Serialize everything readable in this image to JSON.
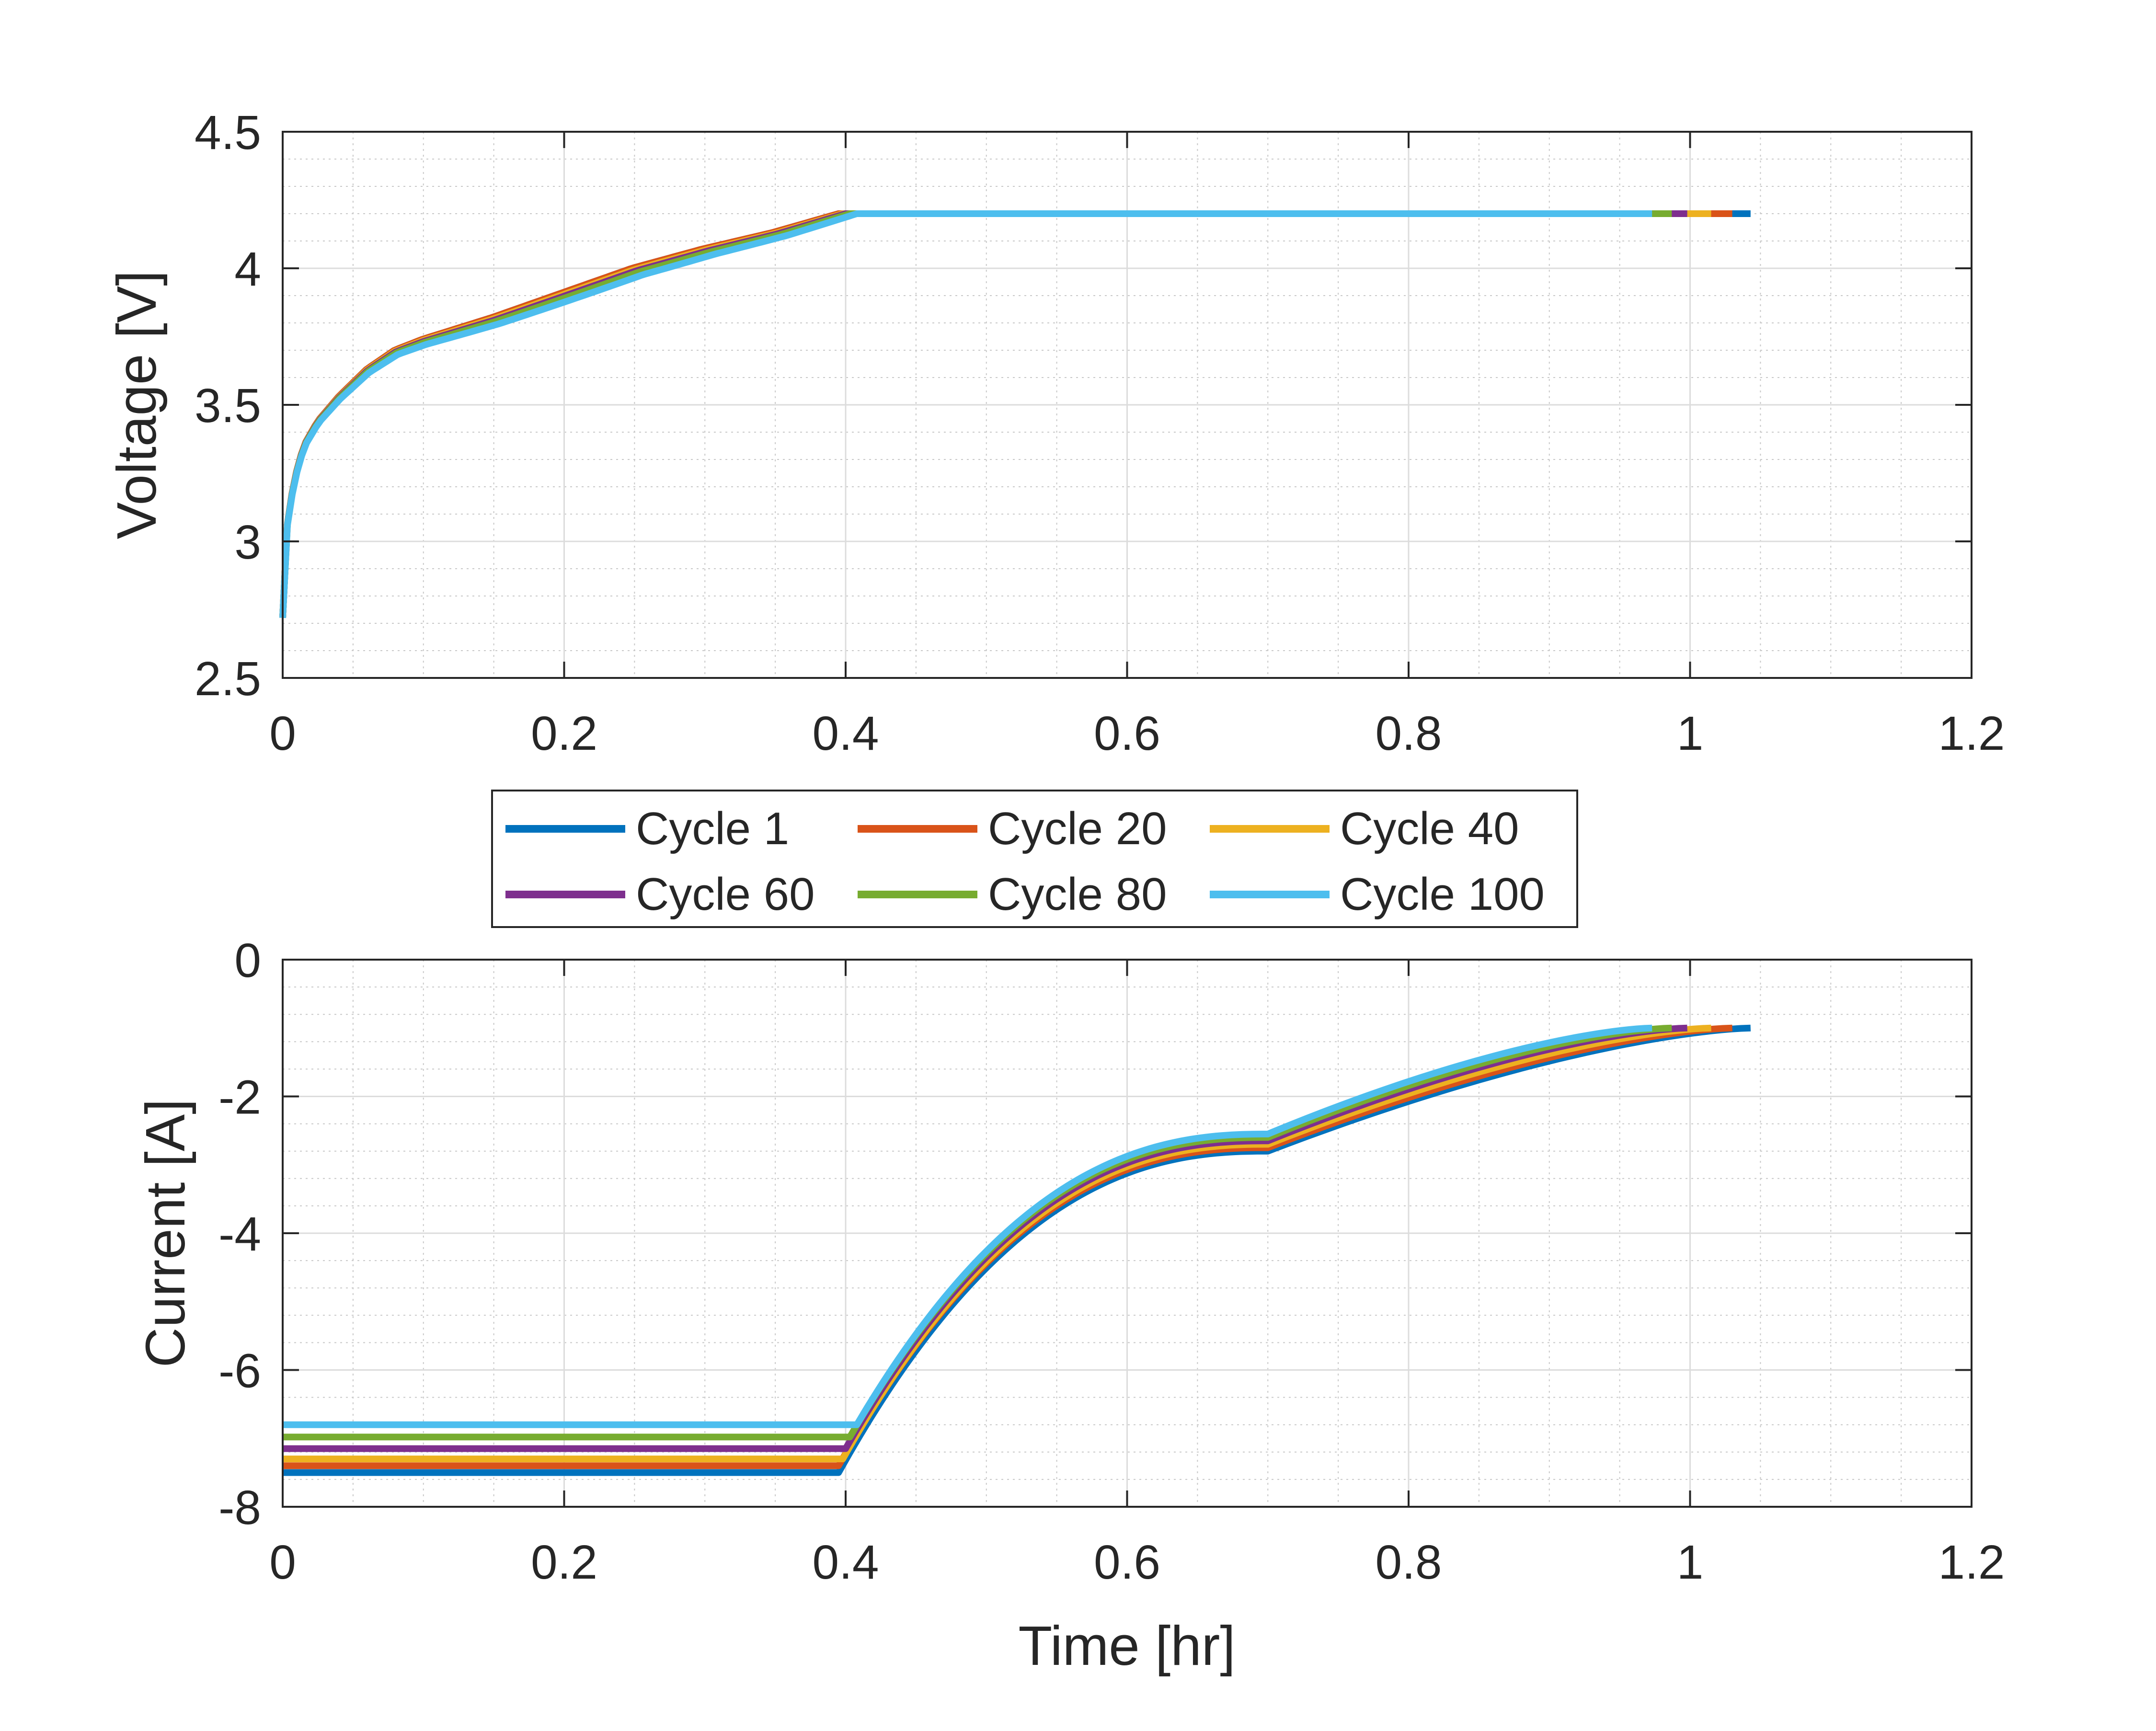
{
  "chart_data": [
    {
      "type": "line",
      "id": "voltage",
      "title": "",
      "xlabel": "",
      "ylabel": "Voltage [V]",
      "xlim": [
        0,
        1.2
      ],
      "ylim": [
        2.5,
        4.5
      ],
      "xticks": [
        0,
        0.2,
        0.4,
        0.6,
        0.8,
        1,
        1.2
      ],
      "xtick_labels": [
        "0",
        "0.2",
        "0.4",
        "0.6",
        "0.8",
        "1",
        "1.2"
      ],
      "yticks": [
        2.5,
        3,
        3.5,
        4,
        4.5
      ],
      "ytick_labels": [
        "2.5",
        "3",
        "3.5",
        "4",
        "4.5"
      ],
      "grid": true,
      "minor_grid": true,
      "series": [
        {
          "name": "Cycle 1",
          "color": "#0072BD",
          "cv_start": 0.395,
          "end": 1.043,
          "v_offset": 0.0
        },
        {
          "name": "Cycle 20",
          "color": "#D95319",
          "cv_start": 0.395,
          "end": 1.03,
          "v_offset": 0.0
        },
        {
          "name": "Cycle 40",
          "color": "#EDB120",
          "cv_start": 0.398,
          "end": 1.015,
          "v_offset": -0.005
        },
        {
          "name": "Cycle 60",
          "color": "#7E2F8E",
          "cv_start": 0.4,
          "end": 0.998,
          "v_offset": -0.01
        },
        {
          "name": "Cycle 80",
          "color": "#77AC30",
          "cv_start": 0.403,
          "end": 0.987,
          "v_offset": -0.015
        },
        {
          "name": "Cycle 100",
          "color": "#4DBEEE",
          "cv_start": 0.408,
          "end": 0.973,
          "v_offset": -0.025
        }
      ],
      "v_curve": {
        "t": [
          0,
          0.003,
          0.008,
          0.015,
          0.025,
          0.04,
          0.06,
          0.08,
          0.1,
          0.15,
          0.2,
          0.25,
          0.3,
          0.35,
          0.398
        ],
        "v": [
          2.72,
          3.05,
          3.22,
          3.35,
          3.44,
          3.53,
          3.63,
          3.7,
          3.74,
          3.82,
          3.91,
          4.0,
          4.07,
          4.13,
          4.2
        ]
      },
      "cv_voltage": 4.2
    },
    {
      "type": "line",
      "id": "current",
      "title": "",
      "xlabel": "Time [hr]",
      "ylabel": "Current [A]",
      "xlim": [
        0,
        1.2
      ],
      "ylim": [
        -8,
        0
      ],
      "xticks": [
        0,
        0.2,
        0.4,
        0.6,
        0.8,
        1,
        1.2
      ],
      "xtick_labels": [
        "0",
        "0.2",
        "0.4",
        "0.6",
        "0.8",
        "1",
        "1.2"
      ],
      "yticks": [
        -8,
        -6,
        -4,
        -2,
        0
      ],
      "ytick_labels": [
        "-8",
        "-6",
        "-4",
        "-2",
        "0"
      ],
      "grid": true,
      "minor_grid": true,
      "series": [
        {
          "name": "Cycle 1",
          "color": "#0072BD",
          "cc_current": -7.5,
          "cv_start": 0.395,
          "end": 1.043,
          "end_current": -1.0,
          "mid_current": -2.8
        },
        {
          "name": "Cycle 20",
          "color": "#D95319",
          "cc_current": -7.4,
          "cv_start": 0.395,
          "end": 1.03,
          "end_current": -1.0,
          "mid_current": -2.75
        },
        {
          "name": "Cycle 40",
          "color": "#EDB120",
          "cc_current": -7.3,
          "cv_start": 0.398,
          "end": 1.015,
          "end_current": -1.0,
          "mid_current": -2.7
        },
        {
          "name": "Cycle 60",
          "color": "#7E2F8E",
          "cc_current": -7.15,
          "cv_start": 0.4,
          "end": 0.998,
          "end_current": -1.0,
          "mid_current": -2.65
        },
        {
          "name": "Cycle 80",
          "color": "#77AC30",
          "cc_current": -6.98,
          "cv_start": 0.403,
          "end": 0.987,
          "end_current": -1.0,
          "mid_current": -2.6
        },
        {
          "name": "Cycle 100",
          "color": "#4DBEEE",
          "cc_current": -6.8,
          "cv_start": 0.408,
          "end": 0.973,
          "end_current": -1.0,
          "mid_current": -2.55
        }
      ]
    }
  ],
  "legend": {
    "placement": "between-plots",
    "entries": [
      "Cycle 1",
      "Cycle 20",
      "Cycle 40",
      "Cycle 60",
      "Cycle 80",
      "Cycle 100"
    ],
    "colors": [
      "#0072BD",
      "#D95319",
      "#EDB120",
      "#7E2F8E",
      "#77AC30",
      "#4DBEEE"
    ]
  }
}
